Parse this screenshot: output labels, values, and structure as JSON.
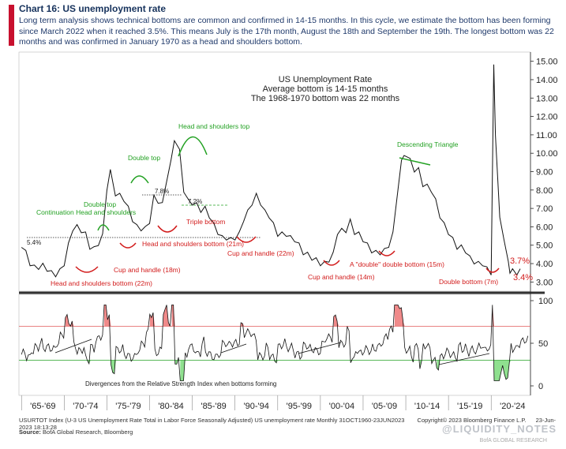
{
  "header": {
    "title": "Chart 16: US unemployment rate",
    "subtitle": "Long term analysis shows technical bottoms are common and confirmed in 14-15 months. In this cycle, we estimate the bottom has been forming since March 2022 when it reached 3.5%. This means July is the 17th month, August the 18th and September the 19th. The longest bottom was 22 months and was confirmed in January 1970 as a head and shoulders bottom."
  },
  "chart_data": [
    {
      "type": "line",
      "title": "US Unemployment Rate",
      "notes": [
        "Average bottom is 14-15 months",
        "The 1968-1970 bottom was 22 months"
      ],
      "ylim": [
        2.5,
        15.5
      ],
      "yticks": [
        "3.00",
        "4.00",
        "5.00",
        "6.00",
        "7.00",
        "8.00",
        "9.00",
        "10.00",
        "11.00",
        "12.00",
        "13.00",
        "14.00",
        "15.00"
      ],
      "x": [
        1965.0,
        1965.5,
        1966.0,
        1966.5,
        1967.0,
        1967.5,
        1968.0,
        1968.5,
        1969.0,
        1969.5,
        1970.0,
        1970.5,
        1971.0,
        1971.5,
        1972.0,
        1972.5,
        1973.0,
        1973.5,
        1974.0,
        1974.5,
        1975.0,
        1975.4,
        1976.0,
        1976.5,
        1977.0,
        1977.5,
        1978.0,
        1978.5,
        1979.0,
        1979.5,
        1980.0,
        1980.5,
        1981.0,
        1981.5,
        1982.0,
        1982.5,
        1982.9,
        1983.5,
        1984.0,
        1984.5,
        1985.0,
        1985.5,
        1986.0,
        1986.5,
        1987.0,
        1987.5,
        1988.0,
        1988.5,
        1989.0,
        1989.5,
        1990.0,
        1990.5,
        1991.0,
        1991.5,
        1992.0,
        1992.5,
        1993.0,
        1993.5,
        1994.0,
        1994.5,
        1995.0,
        1995.5,
        1996.0,
        1996.5,
        1997.0,
        1997.5,
        1998.0,
        1998.5,
        1999.0,
        1999.5,
        2000.0,
        2000.5,
        2001.0,
        2001.5,
        2002.0,
        2002.5,
        2003.0,
        2003.5,
        2004.0,
        2004.5,
        2005.0,
        2005.5,
        2006.0,
        2006.5,
        2007.0,
        2007.5,
        2008.0,
        2008.5,
        2009.0,
        2009.5,
        2009.8,
        2010.5,
        2011.0,
        2011.5,
        2012.0,
        2012.5,
        2013.0,
        2013.5,
        2014.0,
        2014.5,
        2015.0,
        2015.5,
        2016.0,
        2016.5,
        2017.0,
        2017.5,
        2018.0,
        2018.5,
        2019.0,
        2019.5,
        2020.0,
        2020.3,
        2020.5,
        2021.0,
        2021.5,
        2022.0,
        2022.2,
        2022.5,
        2023.0,
        2023.4
      ],
      "values": [
        5.0,
        4.6,
        4.0,
        3.8,
        3.8,
        3.9,
        3.7,
        3.5,
        3.4,
        3.6,
        4.0,
        5.0,
        5.9,
        6.0,
        5.8,
        5.6,
        4.9,
        4.8,
        5.1,
        5.5,
        8.1,
        9.0,
        7.8,
        7.7,
        7.5,
        7.0,
        6.4,
        6.0,
        5.9,
        5.9,
        6.3,
        7.6,
        7.4,
        7.2,
        8.6,
        9.5,
        10.8,
        10.1,
        8.0,
        7.4,
        7.3,
        7.2,
        6.9,
        7.0,
        6.6,
        6.1,
        5.7,
        5.4,
        5.4,
        5.3,
        5.4,
        5.6,
        6.4,
        6.8,
        7.3,
        7.7,
        7.3,
        6.8,
        6.6,
        6.1,
        5.6,
        5.6,
        5.6,
        5.4,
        5.3,
        5.0,
        4.6,
        4.5,
        4.3,
        4.2,
        4.0,
        4.0,
        4.2,
        4.5,
        5.7,
        5.8,
        5.8,
        6.3,
        5.7,
        5.6,
        5.3,
        5.0,
        4.7,
        4.6,
        4.6,
        4.7,
        5.0,
        5.6,
        7.8,
        9.5,
        10.0,
        9.6,
        9.1,
        9.1,
        8.3,
        8.2,
        8.0,
        7.4,
        6.6,
        6.1,
        5.7,
        5.3,
        4.9,
        4.9,
        4.7,
        4.3,
        4.1,
        4.0,
        4.0,
        3.7,
        3.5,
        14.7,
        11.1,
        6.4,
        5.4,
        4.0,
        3.6,
        3.6,
        3.5,
        3.6
      ],
      "last_labels": [
        "3.7%",
        "3.4%"
      ],
      "level_labels": [
        "5.4%",
        "7.8%",
        "7.2%"
      ],
      "annotations_green": [
        "Continuation Head and shoulders",
        "Double top",
        "Double top",
        "Head and shoulders top",
        "Descending Triangle"
      ],
      "annotations_red": [
        "Head and shoulders bottom (22m)",
        "Cup and handle (18m)",
        "Head and shoulders bottom (21m)",
        "Triple bottom",
        "Cup and handle (22m)",
        "Cup and handle (14m)",
        "A \"double\" double bottom (15m)",
        "Double bottom (7m)"
      ]
    },
    {
      "type": "line",
      "title": "Divergences from the Relative Strength Index when bottoms forming",
      "ylim": [
        0,
        100
      ],
      "yticks": [
        "0",
        "50",
        "100"
      ],
      "reference_lines": [
        30,
        70
      ],
      "x_labels": [
        "'65-'69",
        "'70-'74",
        "'75-'79",
        "'80-'84",
        "'85-'89",
        "'90-'94",
        "'95-'99",
        "'00-'04",
        "'05-'09",
        "'10-'14",
        "'15-'19",
        "'20-'24"
      ]
    }
  ],
  "footer": {
    "index_line": "USURTOT Index (U-3 US Unemployment Rate Total in Labor Force Seasonally Adjusted) US unemployment rate  Monthly 31OCT1960-23JUN2023",
    "copyright": "Copyright© 2023 Bloomberg Finance L.P.",
    "timestamp": "23-Jun-2023 18:13:28",
    "source_label": "Source:",
    "source": "BofA Global Research, Bloomberg",
    "watermark": "@LIQUIDITY_NOTES",
    "brand": "BofA GLOBAL RESEARCH"
  }
}
